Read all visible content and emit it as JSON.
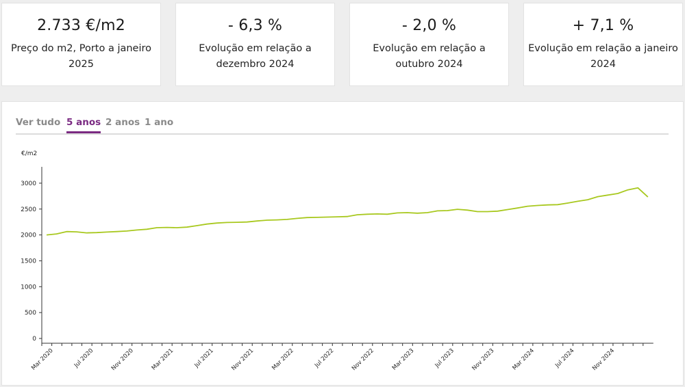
{
  "stats": [
    {
      "value": "2.733 €/m2",
      "label": "Preço do m2, Porto a janeiro 2025"
    },
    {
      "value": "- 6,3 %",
      "label": "Evolução em relação a dezembro 2024"
    },
    {
      "value": "- 2,0 %",
      "label": "Evolução em relação a outubro 2024"
    },
    {
      "value": "+ 7,1 %",
      "label": "Evolução em relação a janeiro 2024"
    }
  ],
  "tabs": [
    {
      "label": "Ver tudo",
      "active": false
    },
    {
      "label": "5 anos",
      "active": true
    },
    {
      "label": "2 anos",
      "active": false
    },
    {
      "label": "1 ano",
      "active": false
    }
  ],
  "colors": {
    "line": "#a8c81e",
    "accent": "#7a2a82"
  },
  "chart_data": {
    "type": "line",
    "ylabel": "€/m2",
    "ylim": [
      0,
      3000
    ],
    "yticks": [
      0,
      500,
      1000,
      1500,
      2000,
      2500,
      3000
    ],
    "xtick_labels": [
      "Mar 2020",
      "Jul 2020",
      "Nov 2020",
      "Mar 2021",
      "Jul 2021",
      "Nov 2021",
      "Mar 2022",
      "Jul 2022",
      "Nov 2022",
      "Mar 2023",
      "Jul 2023",
      "Nov 2023",
      "Mar 2024",
      "Jul 2024",
      "Nov 2024"
    ],
    "start": "Feb 2020",
    "series": [
      {
        "values": [
          2000,
          2020,
          2065,
          2060,
          2040,
          2045,
          2055,
          2065,
          2075,
          2095,
          2110,
          2140,
          2145,
          2140,
          2150,
          2180,
          2210,
          2230,
          2240,
          2245,
          2250,
          2270,
          2285,
          2290,
          2300,
          2320,
          2335,
          2340,
          2345,
          2350,
          2355,
          2390,
          2400,
          2405,
          2400,
          2425,
          2430,
          2420,
          2430,
          2465,
          2470,
          2495,
          2480,
          2450,
          2450,
          2460,
          2490,
          2520,
          2555,
          2570,
          2580,
          2585,
          2615,
          2650,
          2680,
          2740,
          2770,
          2800,
          2870,
          2910,
          2733
        ]
      }
    ],
    "grid": false
  }
}
